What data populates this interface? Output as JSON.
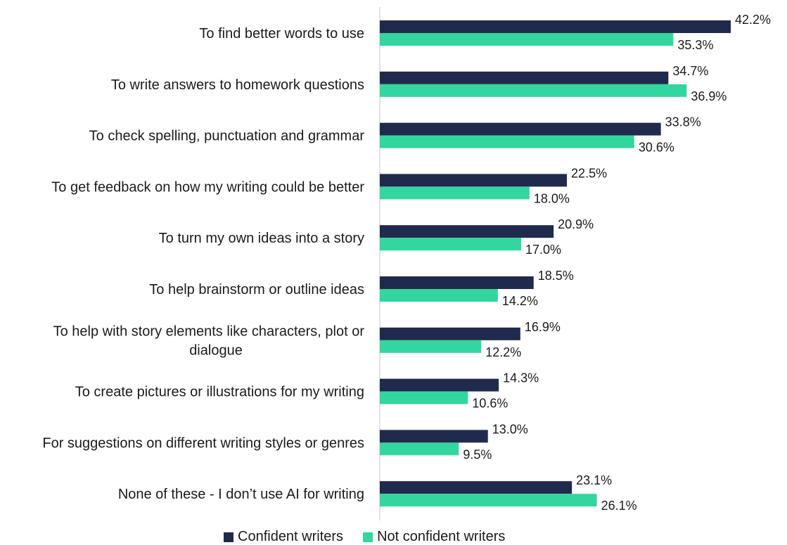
{
  "chart_data": {
    "type": "bar",
    "orientation": "horizontal",
    "categories": [
      [
        "To find better words to use"
      ],
      [
        "To write answers to homework questions"
      ],
      [
        "To check spelling, punctuation and grammar"
      ],
      [
        "To get feedback on how my writing could be better"
      ],
      [
        "To turn my own ideas into a story"
      ],
      [
        "To help brainstorm or outline ideas"
      ],
      [
        "To help with story elements like characters, plot or",
        "dialogue"
      ],
      [
        "To create pictures or illustrations for my writing"
      ],
      [
        "For suggestions on different writing styles or genres"
      ],
      [
        "None of these - I don’t use AI for writing"
      ]
    ],
    "series": [
      {
        "name": "Confident writers",
        "color": "#1f2a4d",
        "values": [
          42.2,
          34.7,
          33.8,
          22.5,
          20.9,
          18.5,
          16.9,
          14.3,
          13.0,
          23.1
        ],
        "labels": [
          "42.2%",
          "34.7%",
          "33.8%",
          "22.5%",
          "20.9%",
          "18.5%",
          "16.9%",
          "14.3%",
          "13.0%",
          "23.1%"
        ]
      },
      {
        "name": "Not confident writers",
        "color": "#33d69f",
        "values": [
          35.3,
          36.9,
          30.6,
          18.0,
          17.0,
          14.2,
          12.2,
          10.6,
          9.5,
          26.1
        ],
        "labels": [
          "35.3%",
          "36.9%",
          "30.6%",
          "18.0%",
          "17.0%",
          "14.2%",
          "12.2%",
          "10.6%",
          "9.5%",
          "26.1%"
        ]
      }
    ],
    "xlim": [
      0,
      42.2
    ],
    "grid": false,
    "legend_position": "bottom",
    "axis_color": "#d9d9d9"
  },
  "legend": {
    "items": [
      {
        "label": "Confident writers",
        "color": "#1f2a4d"
      },
      {
        "label": "Not confident writers",
        "color": "#33d69f"
      }
    ]
  }
}
